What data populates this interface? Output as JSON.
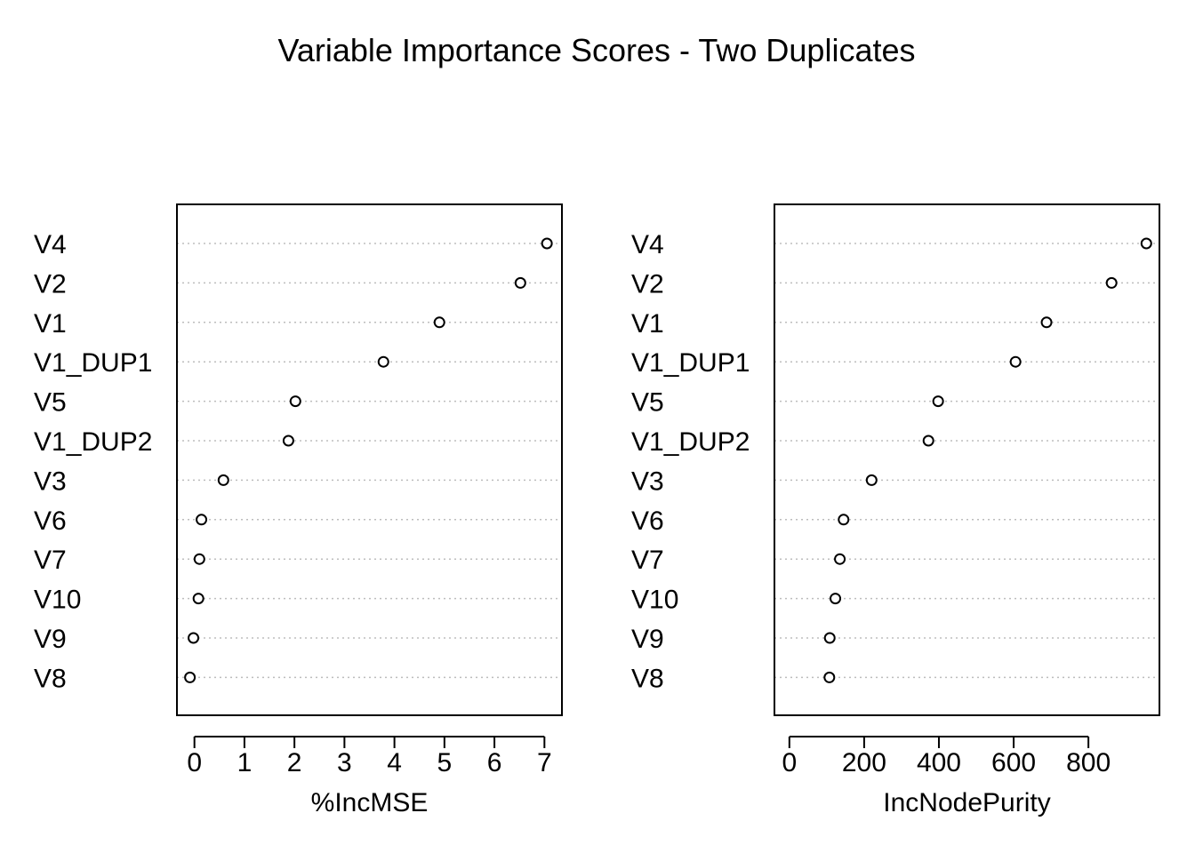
{
  "title": "Variable Importance Scores - Two Duplicates",
  "chart_data": [
    {
      "type": "scatter",
      "variant": "dotchart",
      "xlabel": "%IncMSE",
      "ylabel": "",
      "xlim": [
        -0.35,
        7.35
      ],
      "xticks": [
        0,
        1,
        2,
        3,
        4,
        5,
        6,
        7
      ],
      "grid": "dotted-horizontal",
      "categories": [
        "V4",
        "V2",
        "V1",
        "V1_DUP1",
        "V5",
        "V1_DUP2",
        "V3",
        "V6",
        "V7",
        "V10",
        "V9",
        "V8"
      ],
      "values": [
        7.05,
        6.52,
        4.9,
        3.78,
        2.02,
        1.88,
        0.58,
        0.14,
        0.1,
        0.08,
        -0.02,
        -0.09
      ]
    },
    {
      "type": "scatter",
      "variant": "dotchart",
      "xlabel": "IncNodePurity",
      "ylabel": "",
      "xlim": [
        -40,
        990
      ],
      "xticks": [
        0,
        200,
        400,
        600,
        800
      ],
      "grid": "dotted-horizontal",
      "categories": [
        "V4",
        "V2",
        "V1",
        "V1_DUP1",
        "V5",
        "V1_DUP2",
        "V3",
        "V6",
        "V7",
        "V10",
        "V9",
        "V8"
      ],
      "values": [
        955,
        862,
        688,
        605,
        398,
        372,
        220,
        145,
        135,
        123,
        108,
        107
      ]
    }
  ]
}
